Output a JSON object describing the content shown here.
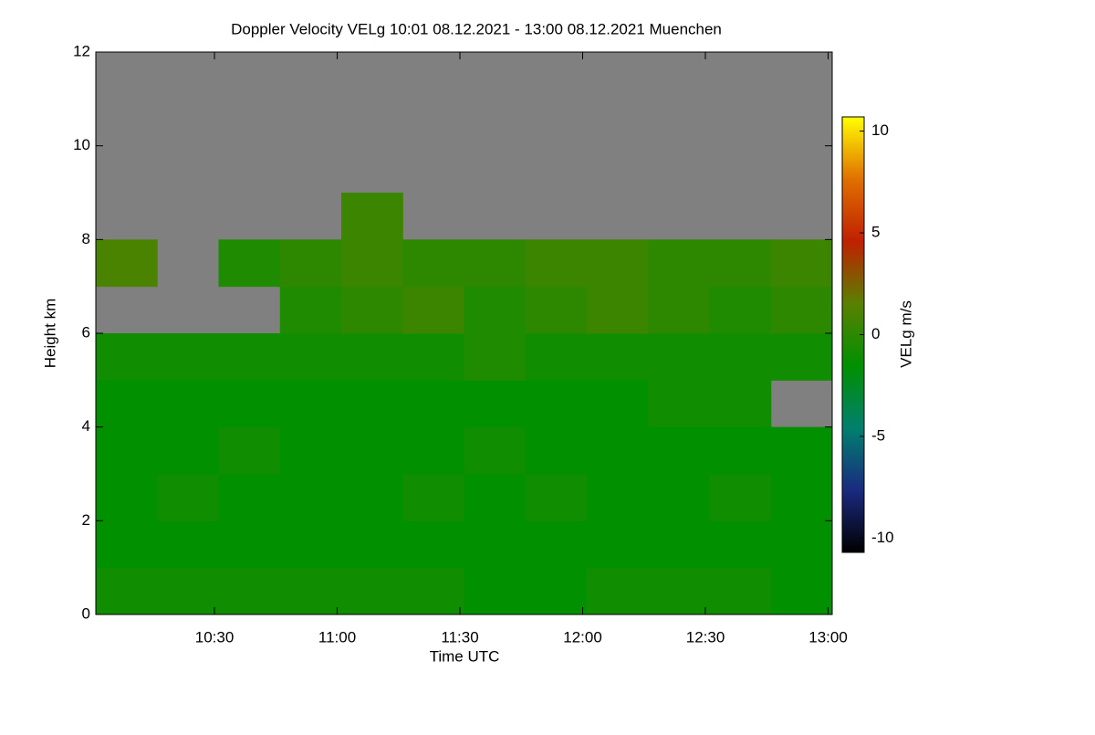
{
  "chart_data": {
    "type": "heatmap",
    "title": "Doppler Velocity VELg   10:01 08.12.2021 - 13:00 08.12.2021 Muenchen",
    "x_label": "Time UTC",
    "y_label": "Height km",
    "colorbar_label": "VELg m/s",
    "background_color": "#808080",
    "colormap": [
      "#000000",
      "#1a2a80",
      "#00806e",
      "#009000",
      "#5a8000",
      "#c02000",
      "#e07000",
      "#ffff00"
    ],
    "xlim": [
      601,
      781
    ],
    "xticks": [
      {
        "value": 630,
        "label": "10:30"
      },
      {
        "value": 660,
        "label": "11:00"
      },
      {
        "value": 690,
        "label": "11:30"
      },
      {
        "value": 720,
        "label": "12:00"
      },
      {
        "value": 750,
        "label": "12:30"
      },
      {
        "value": 780,
        "label": "13:00"
      }
    ],
    "ylim": [
      0,
      12
    ],
    "yticks": [
      0,
      2,
      4,
      6,
      8,
      10,
      12
    ],
    "zlim": [
      -10.7,
      10.7
    ],
    "zticks": [
      -10,
      -5,
      0,
      5,
      10
    ],
    "x_bins": [
      601,
      616,
      631,
      646,
      661,
      676,
      691,
      706,
      721,
      736,
      751,
      766,
      781
    ],
    "y_bins": [
      0,
      1,
      2,
      3,
      4,
      5,
      6,
      7,
      8,
      9,
      10,
      11,
      12
    ],
    "values": [
      [
        -1,
        -1,
        -1,
        -1,
        -1,
        -1,
        -1.5,
        -1.5,
        -1,
        -1,
        -1,
        -1.5
      ],
      [
        -1.5,
        -1.5,
        -1.5,
        -1.5,
        -1.5,
        -1.5,
        -1.5,
        -1.5,
        -1.5,
        -1.5,
        -1.5,
        -1.5
      ],
      [
        -1.5,
        -1,
        -1.5,
        -1.5,
        -1.5,
        -1,
        -1.5,
        -1,
        -1.5,
        -1.5,
        -1,
        -1.5
      ],
      [
        -1.5,
        -1.5,
        -1,
        -1.5,
        -1.5,
        -1.5,
        -1,
        -1.5,
        -1.5,
        -1.5,
        -1.5,
        -1.5
      ],
      [
        -1.5,
        -1.5,
        -1.5,
        -1.5,
        -1.5,
        -1.5,
        -1.5,
        -1.5,
        -1.5,
        -1,
        -1,
        null
      ],
      [
        -1,
        -1,
        -1,
        -1,
        -1,
        -1,
        -0.5,
        -1,
        -1,
        -1,
        -1,
        -1
      ],
      [
        null,
        null,
        null,
        -0.5,
        0,
        0.5,
        -0.5,
        0,
        0.5,
        0,
        -0.5,
        0
      ],
      [
        1,
        null,
        -0.5,
        0,
        0.5,
        0,
        0,
        0.5,
        0.5,
        0,
        0,
        0.5
      ],
      [
        null,
        null,
        null,
        null,
        0.5,
        null,
        null,
        null,
        null,
        null,
        null,
        null
      ],
      [
        null,
        null,
        null,
        null,
        null,
        null,
        null,
        null,
        null,
        null,
        null,
        null
      ],
      [
        null,
        null,
        null,
        null,
        null,
        null,
        null,
        null,
        null,
        null,
        null,
        null
      ],
      [
        null,
        null,
        null,
        null,
        null,
        null,
        null,
        null,
        null,
        null,
        null,
        null
      ]
    ]
  }
}
